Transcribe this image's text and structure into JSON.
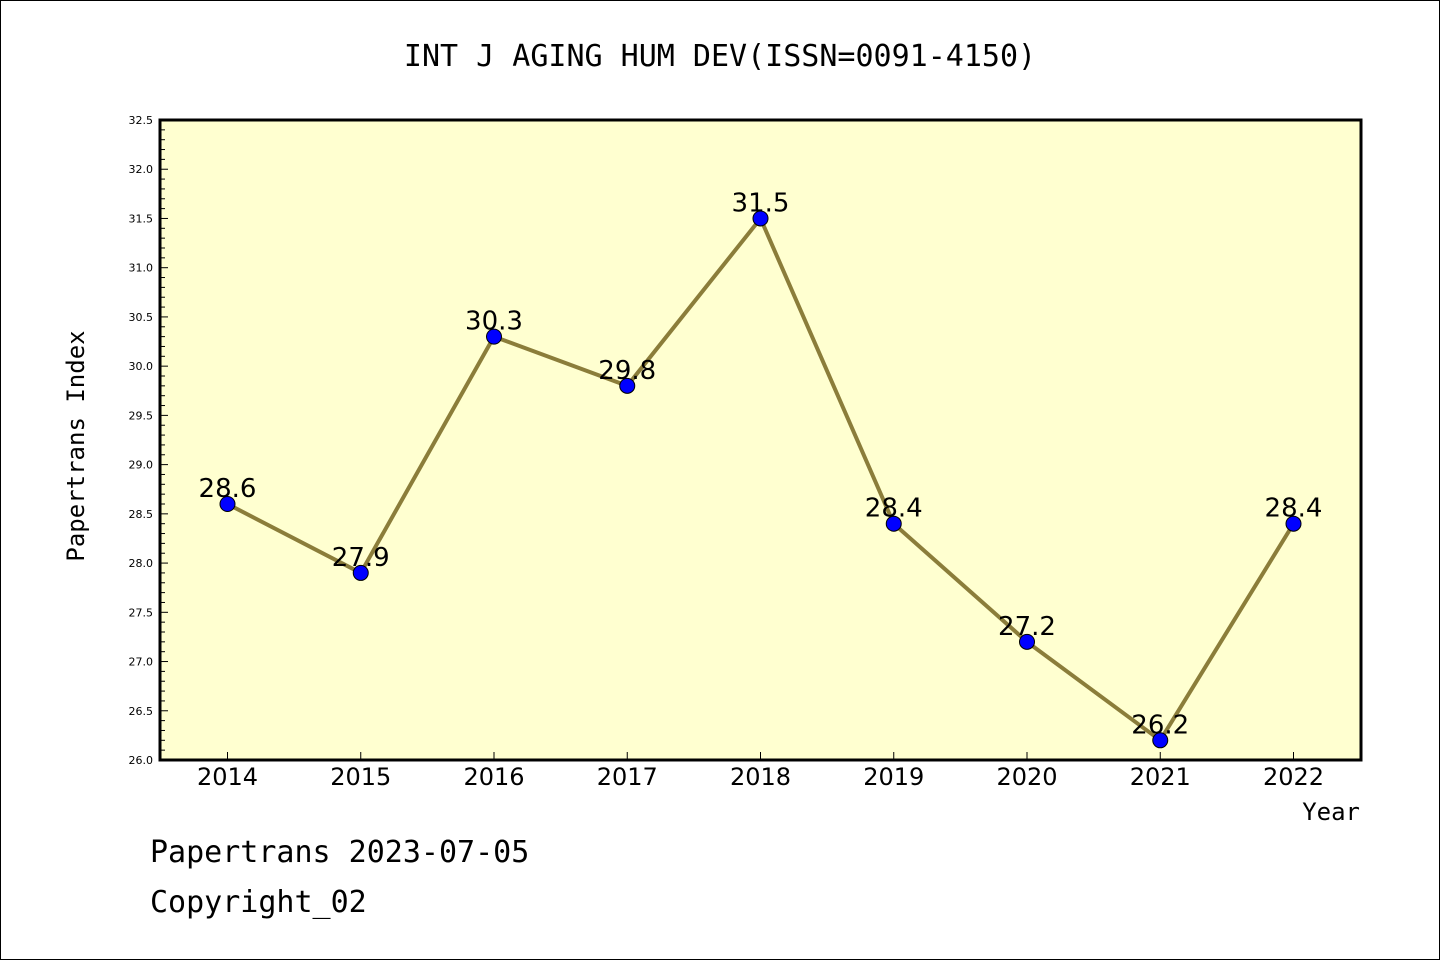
{
  "chart_data": {
    "type": "line",
    "title": "INT J AGING HUM DEV(ISSN=0091-4150)",
    "xlabel": "Year",
    "ylabel": "Papertrans Index",
    "categories": [
      "2014",
      "2015",
      "2016",
      "2017",
      "2018",
      "2019",
      "2020",
      "2021",
      "2022"
    ],
    "series": [
      {
        "values": [
          28.6,
          27.9,
          30.3,
          29.8,
          31.5,
          28.4,
          27.2,
          26.2,
          28.4
        ],
        "data_labels": [
          "28.6",
          "27.9",
          "30.3",
          "29.8",
          "31.5",
          "28.4",
          "27.2",
          "26.2",
          "28.4"
        ]
      }
    ],
    "ylim": [
      26.0,
      32.5
    ],
    "yticks": [
      "26.0",
      "26.5",
      "27.0",
      "27.5",
      "28.0",
      "28.5",
      "29.0",
      "29.5",
      "30.0",
      "30.5",
      "31.0",
      "31.5",
      "32.0",
      "32.5"
    ],
    "grid": false,
    "legend": "none",
    "colors": {
      "plot_background": "#FFFFD0",
      "line": "#8B7D3A",
      "marker": "#0000FF"
    }
  },
  "footer": {
    "line1": "Papertrans 2023-07-05",
    "line2": "Copyright_02"
  }
}
